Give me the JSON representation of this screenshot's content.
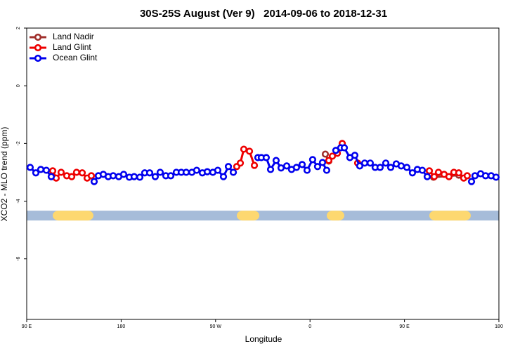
{
  "chart_data": {
    "type": "line",
    "title": "30S-25S August (Ver 9)   2014-09-06 to 2018-12-31",
    "x_label": "Longitude",
    "y_label": "XCO2 - MLO trend (ppm)",
    "xlim": [
      90,
      540
    ],
    "ylim": [
      -8.1,
      2
    ],
    "xticks": [
      {
        "value": 90,
        "label": "90 E"
      },
      180,
      {
        "value": 270,
        "label": "90 W"
      },
      {
        "value": 360,
        "label": "0"
      },
      {
        "value": 450,
        "label": "90 E"
      },
      {
        "value": 540,
        "label": "180"
      }
    ],
    "yticks": [
      2,
      0,
      -2,
      -4,
      -6
    ],
    "legend": "top-left",
    "land_mask": {
      "y": -4.5,
      "ocean_color": "#a6bcd9",
      "land_color": "#fdd870",
      "land": [
        [
          114.8,
          153.6
        ],
        [
          290.2,
          311.7
        ],
        [
          375.9,
          392.7
        ],
        [
          473.7,
          513.2
        ]
      ]
    },
    "series": [
      {
        "name": "Land Nadir",
        "color": "#a0302c",
        "x": [
          374.6,
          377.9,
          null,
          477.7,
          501.8
        ],
        "values": [
          -2.37,
          -2.61,
          null,
          -3.17,
          -3.1
        ]
      },
      {
        "name": "Land Glint",
        "color": "#ee0000",
        "x": [
          114.8,
          118.1,
          122.8,
          128.2,
          132.9,
          137.5,
          142.9,
          147.6,
          151.6,
          null,
          290.2,
          293.6,
          296.9,
          302.3,
          307.0,
          null,
          377.9,
          381.3,
          386.0,
          390.7,
          null,
          405.4,
          null,
          473.7,
          478.4,
          482.4,
          487.8,
          492.4,
          497.1,
          501.8,
          506.5,
          509.8
        ],
        "values": [
          -2.95,
          -3.2,
          -3.0,
          -3.12,
          -3.15,
          -3.0,
          -3.02,
          -3.2,
          -3.12,
          null,
          -2.8,
          -2.68,
          -2.2,
          -2.27,
          -2.76,
          null,
          -2.59,
          -2.44,
          -2.34,
          -2.0,
          null,
          -2.68,
          null,
          -2.95,
          -3.15,
          -3.0,
          -3.07,
          -3.15,
          -3.0,
          -3.02,
          -3.2,
          -3.12
        ]
      },
      {
        "name": "Ocean Glint",
        "color": "#0000ee",
        "x": [
          93.3,
          98.7,
          103.4,
          108.7,
          113.4,
          null,
          154.3,
          158.3,
          163.0,
          167.7,
          172.4,
          177.7,
          182.4,
          187.8,
          192.4,
          197.8,
          202.5,
          207.2,
          212.5,
          217.2,
          222.6,
          227.3,
          232.6,
          237.3,
          242.0,
          247.4,
          252.0,
          257.4,
          262.1,
          267.4,
          272.1,
          277.5,
          282.2,
          286.9,
          null,
          310.3,
          313.6,
          318.3,
          322.4,
          327.7,
          332.4,
          337.8,
          342.4,
          347.1,
          352.5,
          357.2,
          362.5,
          367.2,
          371.9,
          375.9,
          null,
          384.6,
          389.3,
          392.7,
          398.0,
          402.7,
          407.4,
          412.1,
          417.4,
          422.1,
          426.8,
          432.2,
          436.9,
          442.2,
          446.9,
          452.3,
          457.6,
          462.3,
          467.0,
          471.7,
          null,
          513.9,
          517.2,
          522.6,
          527.3,
          532.6,
          537.3
        ],
        "values": [
          -2.83,
          -3.02,
          -2.9,
          -2.93,
          -3.15,
          null,
          -3.32,
          -3.12,
          -3.07,
          -3.15,
          -3.12,
          -3.15,
          -3.07,
          -3.17,
          -3.15,
          -3.17,
          -3.02,
          -3.02,
          -3.15,
          -3.0,
          -3.12,
          -3.12,
          -3.0,
          -3.0,
          -3.0,
          -3.0,
          -2.93,
          -3.02,
          -2.98,
          -3.0,
          -2.93,
          -3.15,
          -2.8,
          -3.0,
          null,
          -2.49,
          -2.49,
          -2.49,
          -2.9,
          -2.59,
          -2.85,
          -2.78,
          -2.9,
          -2.83,
          -2.73,
          -2.93,
          -2.56,
          -2.8,
          -2.66,
          -2.93,
          null,
          -2.24,
          -2.15,
          -2.15,
          -2.49,
          -2.41,
          -2.78,
          -2.68,
          -2.68,
          -2.83,
          -2.83,
          -2.68,
          -2.83,
          -2.71,
          -2.78,
          -2.83,
          -3.02,
          -2.9,
          -2.93,
          -3.15,
          null,
          -3.32,
          -3.12,
          -3.05,
          -3.12,
          -3.12,
          -3.17
        ]
      }
    ]
  }
}
